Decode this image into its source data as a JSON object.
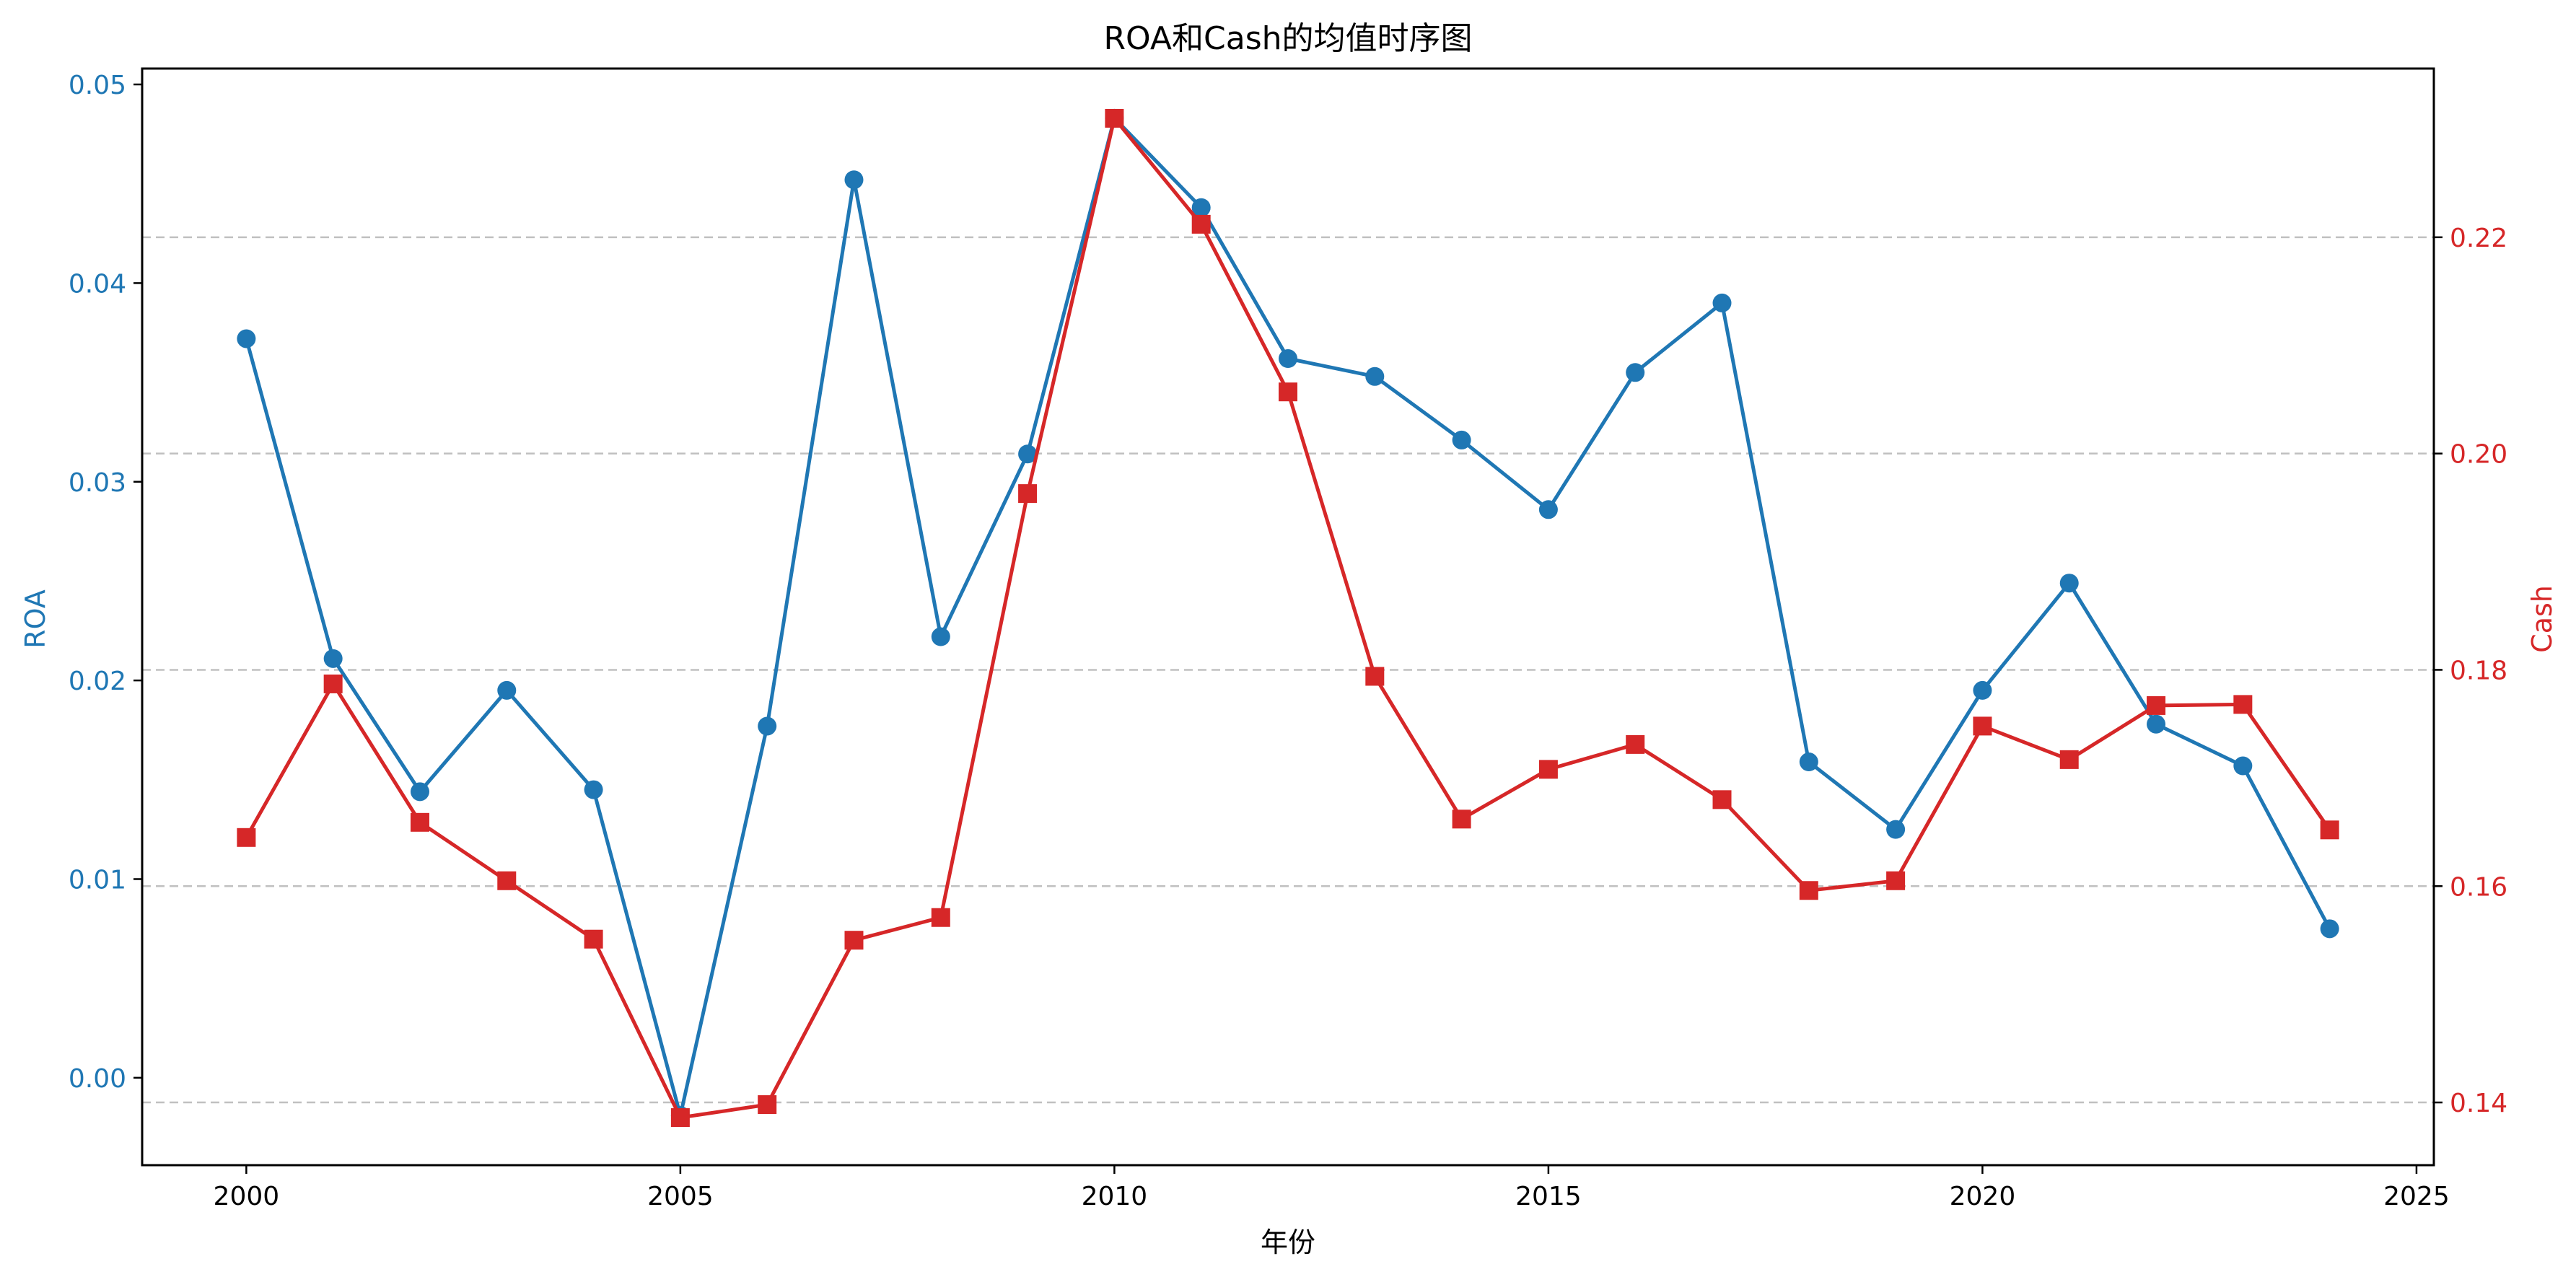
{
  "chart_data": {
    "type": "line",
    "title": "ROA和Cash的均值时序图",
    "xlabel": "年份",
    "ylabel_left": "ROA",
    "ylabel_right": "Cash",
    "x": [
      2000,
      2001,
      2002,
      2003,
      2004,
      2005,
      2006,
      2007,
      2008,
      2009,
      2010,
      2011,
      2012,
      2013,
      2014,
      2015,
      2016,
      2017,
      2018,
      2019,
      2020,
      2021,
      2022,
      2023,
      2024
    ],
    "xlim": [
      1998.8,
      2025.2
    ],
    "x_ticks": [
      2000,
      2005,
      2010,
      2015,
      2020,
      2025
    ],
    "x_tick_labels": [
      "2000",
      "2005",
      "2010",
      "2015",
      "2020",
      "2025"
    ],
    "ylim_left": [
      -0.0044,
      0.0508
    ],
    "y_ticks_left": [
      0.0,
      0.01,
      0.02,
      0.03,
      0.04,
      0.05
    ],
    "y_tick_labels_left": [
      "0.00",
      "0.01",
      "0.02",
      "0.03",
      "0.04",
      "0.05"
    ],
    "ylim_right": [
      0.1342,
      0.2356
    ],
    "y_ticks_right": [
      0.14,
      0.16,
      0.18,
      0.2,
      0.22
    ],
    "y_tick_labels_right": [
      "0.14",
      "0.16",
      "0.18",
      "0.20",
      "0.22"
    ],
    "grid": "horizontal dashed at right-axis ticks",
    "series": [
      {
        "name": "ROA",
        "axis": "left",
        "color": "#1f77b4",
        "marker": "circle",
        "values": [
          0.0372,
          0.0211,
          0.0144,
          0.0195,
          0.0145,
          -0.0019,
          0.0177,
          0.0452,
          0.0222,
          0.0314,
          0.0483,
          0.0438,
          0.0362,
          0.0353,
          0.0321,
          0.0286,
          0.0355,
          0.039,
          0.0159,
          0.0125,
          0.0195,
          0.0249,
          0.0178,
          0.0157,
          0.0075
        ]
      },
      {
        "name": "Cash",
        "axis": "right",
        "color": "#d62728",
        "marker": "square",
        "values": [
          0.1645,
          0.1787,
          0.1659,
          0.1605,
          0.1551,
          0.1386,
          0.1398,
          0.155,
          0.1571,
          0.1963,
          0.231,
          0.2212,
          0.2057,
          0.1794,
          0.1662,
          0.1708,
          0.1731,
          0.168,
          0.1596,
          0.1605,
          0.1748,
          0.1717,
          0.1767,
          0.1768,
          0.1652
        ]
      }
    ]
  }
}
